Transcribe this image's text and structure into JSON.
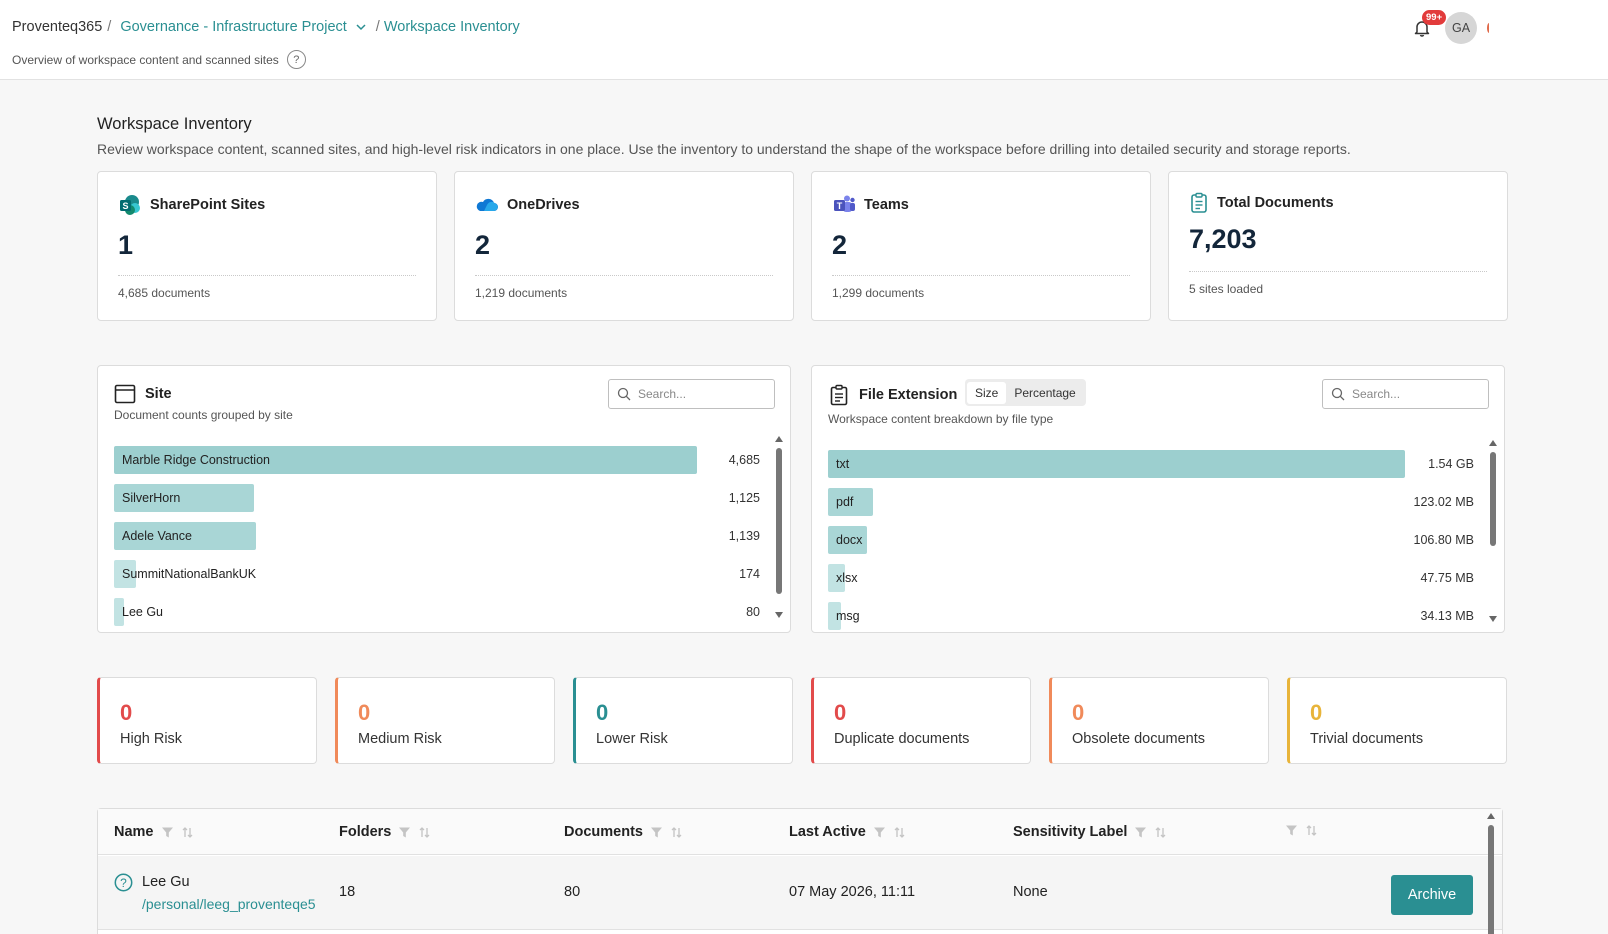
{
  "breadcrumb": {
    "root": "Proventeq365",
    "project": "Governance - Infrastructure Project",
    "current": "Workspace Inventory"
  },
  "header": {
    "subtitle": "Overview of workspace content and scanned sites",
    "help": "?",
    "notifications_badge": "99+",
    "avatar_initials": "GA"
  },
  "intro": {
    "title": "Workspace Inventory",
    "description": "Review workspace content, scanned sites, and high-level risk indicators in one place. Use the inventory to understand the shape of the workspace before drilling into detailed security and storage reports."
  },
  "stats": [
    {
      "label": "SharePoint Sites",
      "value": "1",
      "sub": "4,685 documents",
      "icon": "sharepoint-icon"
    },
    {
      "label": "OneDrives",
      "value": "2",
      "sub": "1,219 documents",
      "icon": "onedrive-icon"
    },
    {
      "label": "Teams",
      "value": "2",
      "sub": "1,299 documents",
      "icon": "teams-icon"
    },
    {
      "label": "Total Documents",
      "value": "7,203",
      "sub": "5 sites loaded",
      "icon": "clipboard-icon"
    }
  ],
  "site_panel": {
    "title": "Site",
    "subtitle": "Document counts grouped by site",
    "search_placeholder": "Search...",
    "rows": [
      {
        "label": "Marble Ridge Construction",
        "value": "4,685",
        "fraction": 1.0
      },
      {
        "label": "SilverHorn",
        "value": "1,125",
        "fraction": 0.24
      },
      {
        "label": "Adele Vance",
        "value": "1,139",
        "fraction": 0.243
      },
      {
        "label": "SummitNationalBankUK",
        "value": "174",
        "fraction": 0.037
      },
      {
        "label": "Lee Gu",
        "value": "80",
        "fraction": 0.017
      }
    ]
  },
  "extension_panel": {
    "title": "File Extension",
    "subtitle": "Workspace content breakdown by file type",
    "toggle": [
      "Size",
      "Percentage"
    ],
    "search_placeholder": "Search...",
    "rows": [
      {
        "label": "txt",
        "value": "1.54 GB",
        "fraction": 1.0
      },
      {
        "label": "pdf",
        "value": "123.02 MB",
        "fraction": 0.078
      },
      {
        "label": "docx",
        "value": "106.80 MB",
        "fraction": 0.068
      },
      {
        "label": "xlsx",
        "value": "47.75 MB",
        "fraction": 0.03
      },
      {
        "label": "msg",
        "value": "34.13 MB",
        "fraction": 0.022
      }
    ]
  },
  "risks": [
    {
      "value": "0",
      "label": "High Risk",
      "color": "#e24b4b"
    },
    {
      "value": "0",
      "label": "Medium Risk",
      "color": "#f08a5a"
    },
    {
      "value": "0",
      "label": "Lower Risk",
      "color": "#2a8f92"
    },
    {
      "value": "0",
      "label": "Duplicate documents",
      "color": "#e24b4b"
    },
    {
      "value": "0",
      "label": "Obsolete documents",
      "color": "#f08a5a"
    },
    {
      "value": "0",
      "label": "Trivial documents",
      "color": "#e8b43a"
    }
  ],
  "table": {
    "columns": [
      "Name",
      "Folders",
      "Documents",
      "Last Active",
      "Sensitivity Label",
      ""
    ],
    "rows": [
      {
        "name": "Lee Gu",
        "path": "/personal/leeg_proventeqe5",
        "folders": "18",
        "documents": "80",
        "last_active": "07 May 2026, 11:11",
        "sensitivity": "None",
        "action": "Archive"
      }
    ]
  },
  "colors": {
    "accent": "#2a8f92",
    "bar_primary": "#9ccfcf",
    "bar_light": "#c2e3e3"
  }
}
